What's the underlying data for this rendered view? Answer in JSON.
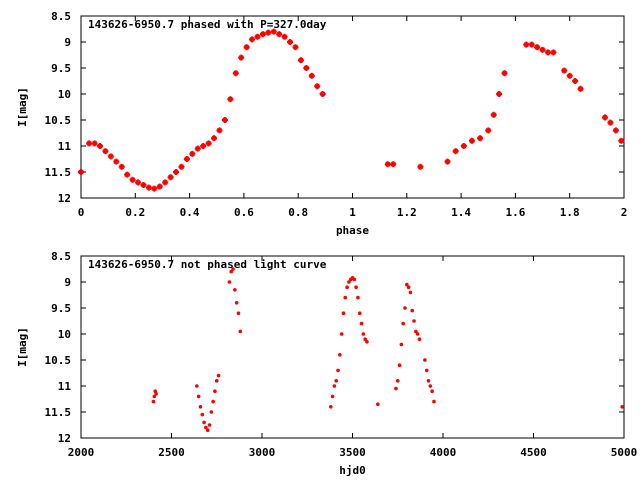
{
  "chart_data": [
    {
      "type": "scatter",
      "title": "143626-6950.7 phased with P=327.0day",
      "xlabel": "phase",
      "ylabel": "I[mag]",
      "xlim": [
        0,
        2
      ],
      "ylim": [
        12,
        8.5
      ],
      "y_inverted": true,
      "x_ticks": [
        "0",
        "0.2",
        "0.4",
        "0.6",
        "0.8",
        "1",
        "1.2",
        "1.4",
        "1.6",
        "1.8",
        "2"
      ],
      "y_ticks": [
        "8.5",
        "9",
        "9.5",
        "10",
        "10.5",
        "11",
        "11.5",
        "12"
      ],
      "grid": false,
      "marker_color": "#ff0000",
      "series": [
        {
          "x": [
            0.0,
            0.03,
            0.05,
            0.07,
            0.09,
            0.11,
            0.13,
            0.15,
            0.17,
            0.19,
            0.21,
            0.23,
            0.25,
            0.27,
            0.29,
            0.31,
            0.33,
            0.35,
            0.37,
            0.39,
            0.41,
            0.43,
            0.45,
            0.47,
            0.49,
            0.51,
            0.53,
            0.55,
            0.57,
            0.59,
            0.61,
            0.63,
            0.65,
            0.67,
            0.69,
            0.71,
            0.73,
            0.75,
            0.77,
            0.79,
            0.81,
            0.83,
            0.85,
            0.87,
            0.89,
            1.13,
            1.15,
            1.25,
            1.35,
            1.38,
            1.41,
            1.44,
            1.47,
            1.5,
            1.52,
            1.54,
            1.56,
            1.64,
            1.66,
            1.68,
            1.7,
            1.72,
            1.74,
            1.78,
            1.8,
            1.82,
            1.84,
            1.93,
            1.95,
            1.97,
            1.99
          ],
          "y": [
            11.5,
            10.95,
            10.95,
            11.0,
            11.1,
            11.2,
            11.3,
            11.4,
            11.55,
            11.65,
            11.7,
            11.75,
            11.8,
            11.82,
            11.78,
            11.7,
            11.6,
            11.5,
            11.4,
            11.25,
            11.15,
            11.05,
            11.0,
            10.95,
            10.85,
            10.7,
            10.5,
            10.1,
            9.6,
            9.3,
            9.1,
            8.95,
            8.9,
            8.85,
            8.82,
            8.8,
            8.85,
            8.9,
            9.0,
            9.1,
            9.35,
            9.5,
            9.65,
            9.85,
            10.0,
            11.35,
            11.35,
            11.4,
            11.3,
            11.1,
            11.0,
            10.9,
            10.85,
            10.7,
            10.4,
            10.0,
            9.6,
            9.05,
            9.05,
            9.1,
            9.15,
            9.2,
            9.2,
            9.55,
            9.65,
            9.75,
            9.9,
            10.45,
            10.55,
            10.7,
            10.9
          ]
        }
      ]
    },
    {
      "type": "scatter",
      "title": "143626-6950.7 not phased light curve",
      "xlabel": "hjd0",
      "ylabel": "I[mag]",
      "xlim": [
        2000,
        5000
      ],
      "ylim": [
        12,
        8.5
      ],
      "y_inverted": true,
      "x_ticks": [
        "2000",
        "2500",
        "3000",
        "3500",
        "4000",
        "4500",
        "5000"
      ],
      "y_ticks": [
        "8.5",
        "9",
        "9.5",
        "10",
        "10.5",
        "11",
        "11.5",
        "12"
      ],
      "grid": false,
      "marker_color": "#ff0000",
      "series": [
        {
          "x": [
            2400,
            2405,
            2410,
            2415,
            2640,
            2650,
            2660,
            2670,
            2680,
            2690,
            2700,
            2710,
            2720,
            2730,
            2740,
            2750,
            2760,
            2820,
            2830,
            2840,
            2850,
            2860,
            2870,
            2880,
            3380,
            3390,
            3400,
            3410,
            3420,
            3430,
            3440,
            3450,
            3460,
            3470,
            3480,
            3490,
            3500,
            3510,
            3520,
            3530,
            3540,
            3550,
            3560,
            3570,
            3580,
            3640,
            3740,
            3750,
            3760,
            3770,
            3780,
            3790,
            3800,
            3810,
            3820,
            3830,
            3840,
            3850,
            3860,
            3870,
            3900,
            3910,
            3920,
            3930,
            3940,
            3950,
            4990
          ],
          "y": [
            11.3,
            11.2,
            11.1,
            11.15,
            11.0,
            11.2,
            11.4,
            11.55,
            11.7,
            11.8,
            11.85,
            11.75,
            11.5,
            11.3,
            11.1,
            10.9,
            10.8,
            9.0,
            8.8,
            8.75,
            9.15,
            9.4,
            9.6,
            9.95,
            11.4,
            11.2,
            11.0,
            10.9,
            10.7,
            10.4,
            10.0,
            9.6,
            9.3,
            9.1,
            9.0,
            8.95,
            8.92,
            8.95,
            9.1,
            9.3,
            9.6,
            9.8,
            10.0,
            10.1,
            10.15,
            11.35,
            11.05,
            10.9,
            10.6,
            10.2,
            9.8,
            9.5,
            9.05,
            9.1,
            9.2,
            9.55,
            9.75,
            9.95,
            10.0,
            10.1,
            10.5,
            10.7,
            10.9,
            11.0,
            11.1,
            11.3,
            11.4
          ]
        }
      ]
    }
  ]
}
